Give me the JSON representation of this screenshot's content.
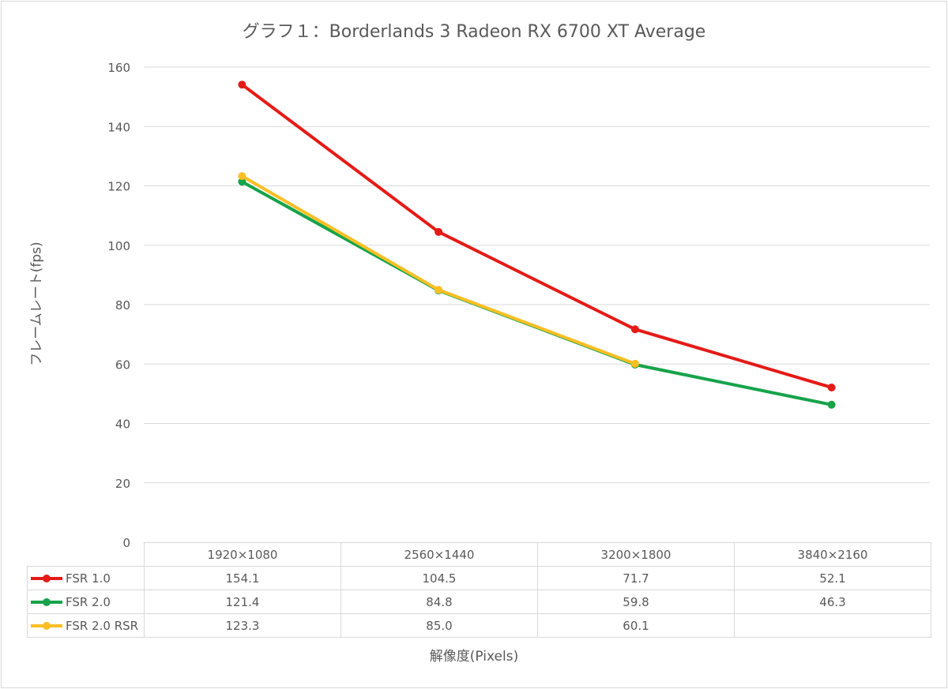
{
  "chart_data": {
    "type": "line",
    "title": "グラフ１：Borderlands 3 Radeon RX 6700 XT Average",
    "xlabel": "解像度(Pixels)",
    "ylabel": "フレームレート(fps)",
    "ylim": [
      0,
      160
    ],
    "yticks": [
      "0",
      "20",
      "40",
      "60",
      "80",
      "100",
      "120",
      "140",
      "160"
    ],
    "grid": true,
    "legend": "data-table",
    "categories": [
      "1920×1080",
      "2560×1440",
      "3200×1800",
      "3840×2160"
    ],
    "series": [
      {
        "name": "FSR 1.0",
        "color": "#e41b17",
        "values": [
          154.1,
          104.5,
          71.7,
          52.1
        ],
        "labels": [
          "154.1",
          "104.5",
          "71.7",
          "52.1"
        ]
      },
      {
        "name": "FSR 2.0",
        "color": "#16a34a",
        "values": [
          121.4,
          84.8,
          59.8,
          46.3
        ],
        "labels": [
          "121.4",
          "84.8",
          "59.8",
          "46.3"
        ]
      },
      {
        "name": "FSR 2.0 RSR",
        "color": "#fbbf24",
        "values": [
          123.3,
          85.0,
          60.1,
          null
        ],
        "labels": [
          "123.3",
          "85.0",
          "60.1",
          ""
        ]
      }
    ]
  }
}
